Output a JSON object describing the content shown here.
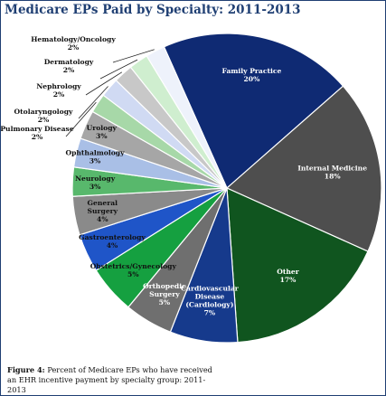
{
  "title": "Medicare EPs Paid by Specialty: 2011-2013",
  "caption": {
    "label": "Figure 4:",
    "text": "Percent of Medicare EPs who have received an EHR incentive payment by specialty group: 2011- 2013"
  },
  "chart_data": {
    "type": "pie",
    "title": "Medicare EPs Paid by Specialty: 2011-2013",
    "unit": "%",
    "slices": [
      {
        "label": [
          "Family Practice"
        ],
        "value": 20,
        "display": "20%",
        "color": "#0f2a73",
        "text_color": "#ffffff"
      },
      {
        "label": [
          "Internal Medicine"
        ],
        "value": 18,
        "display": "18%",
        "color": "#4e4e4e",
        "text_color": "#ffffff"
      },
      {
        "label": [
          "Other"
        ],
        "value": 17,
        "display": "17%",
        "color": "#10551f",
        "text_color": "#ffffff"
      },
      {
        "label": [
          "Cardiovascular",
          "Disease",
          "(Cardiology)"
        ],
        "value": 7,
        "display": "7%",
        "color": "#163a8c",
        "text_color": "#ffffff"
      },
      {
        "label": [
          "Orthopedic",
          "Surgery"
        ],
        "value": 5,
        "display": "5%",
        "color": "#6f6f6f",
        "text_color": "#ffffff"
      },
      {
        "label": [
          "Obstetrics/Gynecology"
        ],
        "value": 5,
        "display": "5%",
        "color": "#15a040",
        "text_color": "#111111"
      },
      {
        "label": [
          "Gastroenterology"
        ],
        "value": 4,
        "display": "4%",
        "color": "#1f55c8",
        "text_color": "#111111"
      },
      {
        "label": [
          "General",
          "Surgery"
        ],
        "value": 4,
        "display": "4%",
        "color": "#8a8a8a",
        "text_color": "#111111"
      },
      {
        "label": [
          "Neurology"
        ],
        "value": 3,
        "display": "3%",
        "color": "#58b86c",
        "text_color": "#111111"
      },
      {
        "label": [
          "Ophthalmology"
        ],
        "value": 3,
        "display": "3%",
        "color": "#a9bfe6",
        "text_color": "#111111"
      },
      {
        "label": [
          "Urology"
        ],
        "value": 3,
        "display": "3%",
        "color": "#a6a6a6",
        "text_color": "#111111"
      },
      {
        "label": [
          "Pulmonary Disease"
        ],
        "value": 2,
        "display": "2%",
        "color": "#a7d8a8",
        "text_color": "#111111"
      },
      {
        "label": [
          "Otolaryngology"
        ],
        "value": 2,
        "display": "2%",
        "color": "#d0daf3",
        "text_color": "#111111"
      },
      {
        "label": [
          "Nephrology"
        ],
        "value": 2,
        "display": "2%",
        "color": "#c8c8c8",
        "text_color": "#111111"
      },
      {
        "label": [
          "Dermatology"
        ],
        "value": 2,
        "display": "2%",
        "color": "#cfeecf",
        "text_color": "#111111"
      },
      {
        "label": [
          "Hematology/Oncology"
        ],
        "value": 2,
        "display": "2%",
        "color": "#eef2fb",
        "text_color": "#111111"
      }
    ]
  }
}
